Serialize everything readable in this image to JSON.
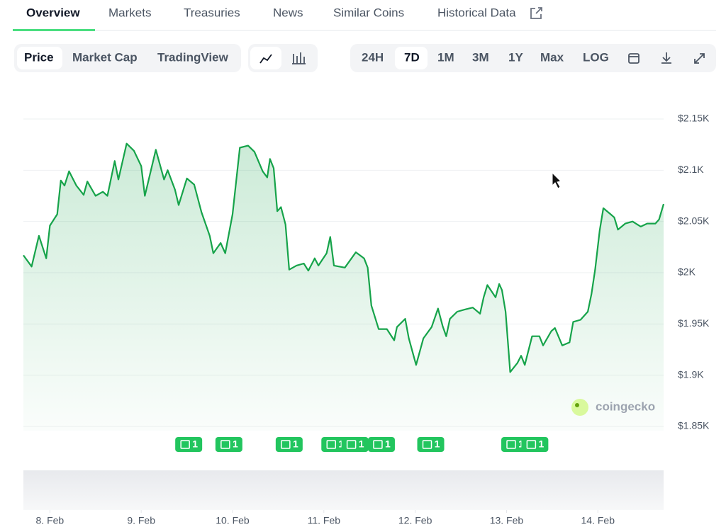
{
  "tabs": [
    "Overview",
    "Markets",
    "Treasuries",
    "News",
    "Similar Coins",
    "Historical Data"
  ],
  "chart_types": [
    "Price",
    "Market Cap",
    "TradingView"
  ],
  "ranges": [
    "24H",
    "7D",
    "1M",
    "3M",
    "1Y",
    "Max",
    "LOG"
  ],
  "watermark": "coingecko",
  "chart_data": {
    "type": "line",
    "color": "#16a34a",
    "grid": true,
    "x": [
      -0.29,
      -0.2,
      -0.12,
      -0.04,
      0,
      0.08,
      0.12,
      0.16,
      0.21,
      0.29,
      0.37,
      0.41,
      0.5,
      0.58,
      0.63,
      0.71,
      0.75,
      0.84,
      0.92,
      1.0,
      1.04,
      1.16,
      1.25,
      1.29,
      1.37,
      1.41,
      1.5,
      1.58,
      1.66,
      1.75,
      1.79,
      1.87,
      1.92,
      2.0,
      2.08,
      2.17,
      2.24,
      2.33,
      2.38,
      2.41,
      2.45,
      2.49,
      2.53,
      2.58,
      2.62,
      2.7,
      2.78,
      2.83,
      2.9,
      2.94,
      3.03,
      3.07,
      3.11,
      3.23,
      3.35,
      3.44,
      3.48,
      3.52,
      3.6,
      3.69,
      3.77,
      3.8,
      3.89,
      3.93,
      4.01,
      4.09,
      4.18,
      4.25,
      4.3,
      4.34,
      4.38,
      4.46,
      4.54,
      4.63,
      4.71,
      4.75,
      4.79,
      4.88,
      4.92,
      4.95,
      4.99,
      5.04,
      5.12,
      5.16,
      5.2,
      5.28,
      5.36,
      5.4,
      5.49,
      5.53,
      5.61,
      5.69,
      5.73,
      5.81,
      5.89,
      5.93,
      5.97,
      6.02,
      6.06,
      6.14,
      6.18,
      6.22,
      6.3,
      6.38,
      6.47,
      6.54,
      6.63,
      6.67,
      6.72
    ],
    "values": [
      2017,
      2006,
      2036,
      2014,
      2046,
      2057,
      2090,
      2085,
      2099,
      2085,
      2076,
      2089,
      2075,
      2079,
      2075,
      2109,
      2091,
      2126,
      2119,
      2104,
      2075,
      2120,
      2091,
      2100,
      2081,
      2066,
      2092,
      2086,
      2059,
      2036,
      2019,
      2029,
      2019,
      2057,
      2122,
      2124,
      2118,
      2099,
      2093,
      2111,
      2102,
      2060,
      2064,
      2047,
      2003,
      2007,
      2009,
      2002,
      2014,
      2007,
      2019,
      2035,
      2007,
      2005,
      2020,
      2014,
      2005,
      1968,
      1945,
      1945,
      1934,
      1947,
      1955,
      1936,
      1910,
      1936,
      1947,
      1965,
      1948,
      1938,
      1955,
      1962,
      1964,
      1966,
      1960,
      1976,
      1988,
      1976,
      1989,
      1983,
      1962,
      1903,
      1912,
      1919,
      1910,
      1938,
      1938,
      1929,
      1943,
      1946,
      1929,
      1932,
      1952,
      1954,
      1962,
      1979,
      2003,
      2041,
      2063,
      2057,
      2054,
      2042,
      2048,
      2050,
      2045,
      2048,
      2048,
      2052,
      2067
    ],
    "xlim": [
      -0.29,
      6.72
    ],
    "xticks": [
      {
        "value": 0,
        "label": "8. Feb"
      },
      {
        "value": 1,
        "label": "9. Feb"
      },
      {
        "value": 2,
        "label": "10. Feb"
      },
      {
        "value": 3,
        "label": "11. Feb"
      },
      {
        "value": 4,
        "label": "12. Feb"
      },
      {
        "value": 5,
        "label": "13. Feb"
      },
      {
        "value": 6,
        "label": "14. Feb"
      }
    ],
    "ylim": [
      1850,
      2150
    ],
    "yticks": [
      {
        "value": 1850,
        "label": "$1.85K"
      },
      {
        "value": 1900,
        "label": "$1.9K"
      },
      {
        "value": 1950,
        "label": "$1.95K"
      },
      {
        "value": 2000,
        "label": "$2K"
      },
      {
        "value": 2050,
        "label": "$2.05K"
      },
      {
        "value": 2100,
        "label": "$2.1K"
      },
      {
        "value": 2150,
        "label": "$2.15K"
      }
    ],
    "events": {
      "x": [
        1.52,
        1.96,
        2.62,
        3.12,
        3.34,
        3.63,
        4.17,
        5.09,
        5.31
      ],
      "labels": [
        "1",
        "1",
        "1",
        "1",
        "1",
        "1",
        "1",
        "1",
        "1"
      ]
    }
  }
}
